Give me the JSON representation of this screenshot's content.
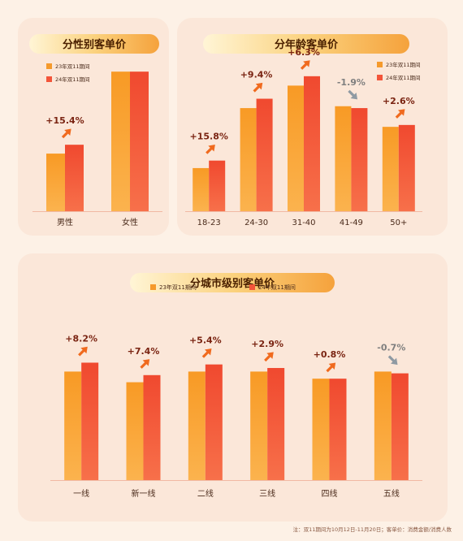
{
  "colors": {
    "bar23": "#f59a2c",
    "bar24": "#f3553a",
    "up_arrow": "#f06a1e",
    "down_arrow": "#8f9aa3",
    "pct": "#7a2412",
    "pct_down": "#7f7f7f",
    "axis_label": "#4a2a1a",
    "title_text": "#4a2000",
    "baseline": "#f1b9a3"
  },
  "chart_data": [
    {
      "type": "bar",
      "title": "分性别客单价",
      "categories": [
        "男性",
        "女性"
      ],
      "series": [
        {
          "name": "23年双11期间",
          "values": [
            26,
            63
          ]
        },
        {
          "name": "24年双11期间",
          "values": [
            30,
            63
          ]
        }
      ],
      "annotations": [
        {
          "category": "男性",
          "text": "+15.4%",
          "direction": "up"
        }
      ],
      "ylim": [
        0,
        66
      ],
      "legend": "top-left"
    },
    {
      "type": "bar",
      "title": "分年龄客单价",
      "categories": [
        "18-23",
        "24-30",
        "31-40",
        "41-49",
        "50+"
      ],
      "series": [
        {
          "name": "23年双11期间",
          "values": [
            23,
            55,
            67,
            56,
            45
          ]
        },
        {
          "name": "24年双11期间",
          "values": [
            27,
            60,
            72,
            55,
            46
          ]
        }
      ],
      "annotations": [
        {
          "category": "18-23",
          "text": "+15.8%",
          "direction": "up"
        },
        {
          "category": "24-30",
          "text": "+9.4%",
          "direction": "up"
        },
        {
          "category": "31-40",
          "text": "+6.3%",
          "direction": "up"
        },
        {
          "category": "41-49",
          "text": "-1.9%",
          "direction": "down"
        },
        {
          "category": "50+",
          "text": "+2.6%",
          "direction": "up"
        }
      ],
      "ylim": [
        0,
        78
      ],
      "legend": "top-right"
    },
    {
      "type": "bar",
      "title": "分城市级别客单价",
      "categories": [
        "一线",
        "新一线",
        "二线",
        "三线",
        "四线",
        "五线"
      ],
      "series": [
        {
          "name": "23年双11期间",
          "values": [
            61,
            55,
            61,
            61,
            57,
            61
          ]
        },
        {
          "name": "24年双11期间",
          "values": [
            66,
            59,
            65,
            63,
            57,
            60
          ]
        }
      ],
      "annotations": [
        {
          "category": "一线",
          "text": "+8.2%",
          "direction": "up"
        },
        {
          "category": "新一线",
          "text": "+7.4%",
          "direction": "up"
        },
        {
          "category": "二线",
          "text": "+5.4%",
          "direction": "up"
        },
        {
          "category": "三线",
          "text": "+2.9%",
          "direction": "up"
        },
        {
          "category": "四线",
          "text": "+0.8%",
          "direction": "up"
        },
        {
          "category": "五线",
          "text": "-0.7%",
          "direction": "down"
        }
      ],
      "ylim": [
        0,
        100
      ],
      "legend": "top-center"
    }
  ],
  "footnote": "注：双11期间为10月12日-11月20日；客单价：消费金额/消费人数"
}
